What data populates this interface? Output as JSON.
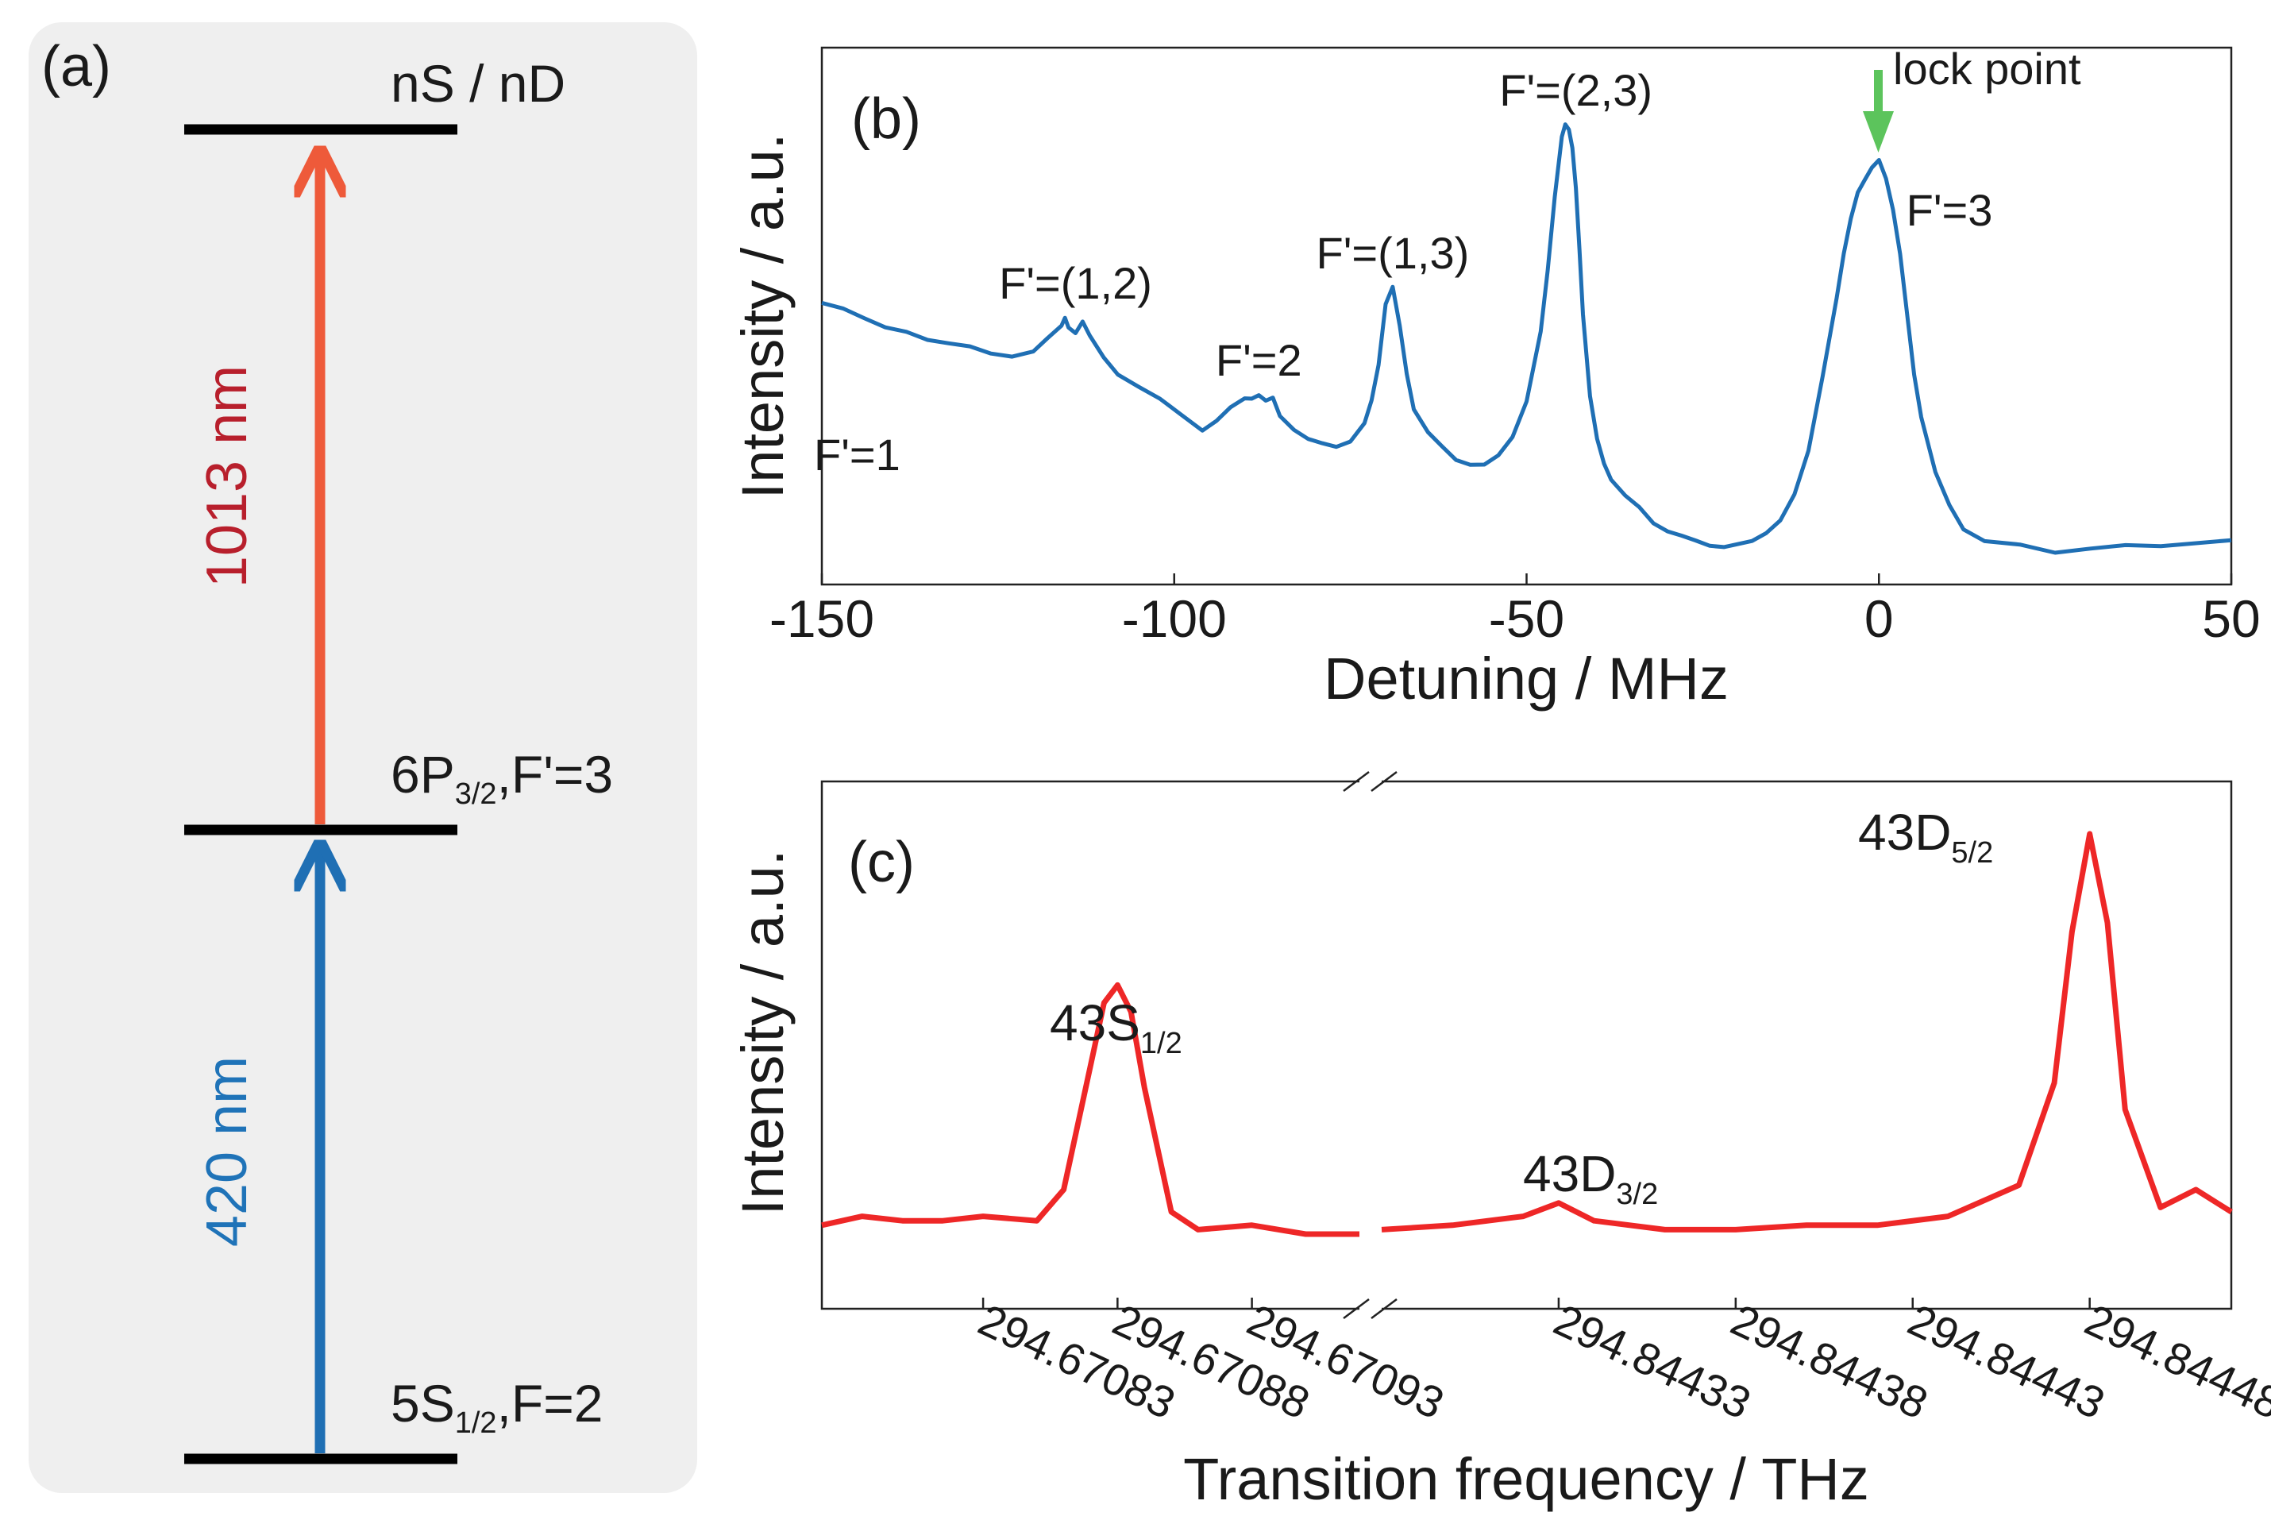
{
  "colors": {
    "panel_bg": "#efefef",
    "level_line": "#000000",
    "arrow_420": "#1f6fb4",
    "arrow_1013": "#ee5a3a",
    "label_420": "#1f73b8",
    "label_1013": "#b81f2c",
    "spectrum_b": "#1f6fb4",
    "spectrum_c": "#ee2727",
    "lock_arrow": "#5cc45c",
    "text": "#1a1a1a"
  },
  "panel_a": {
    "tag": "(a)",
    "levels": [
      {
        "id": "nsnd",
        "label": "nS / nD"
      },
      {
        "id": "6p",
        "label_main": "6P",
        "label_sub": "3/2",
        "label_tail": ",F'=3"
      },
      {
        "id": "5s",
        "label_main": "5S",
        "label_sub": "1/2",
        "label_tail": ",F=2"
      }
    ],
    "transitions": [
      {
        "wavelength": "420 nm",
        "from": "5s",
        "to": "6p"
      },
      {
        "wavelength": "1013 nm",
        "from": "6p",
        "to": "nsnd"
      }
    ]
  },
  "chart_data": [
    {
      "panel": "(b)",
      "type": "line",
      "title": "",
      "xlabel": "Detuning / MHz",
      "ylabel": "Intensity / a.u.",
      "xlim": [
        -150,
        50
      ],
      "ylim": [
        0,
        1
      ],
      "xticks": [
        -150,
        -100,
        -50,
        0,
        50
      ],
      "tick_labels": [
        "-150",
        "-100",
        "-50",
        "0",
        "50"
      ],
      "yticks_shown": false,
      "grid": false,
      "series": [
        {
          "name": "spectrum",
          "x": [
            -150,
            -147,
            -144,
            -141,
            -138,
            -135,
            -132,
            -129,
            -126,
            -123,
            -120,
            -118,
            -116,
            -115.5,
            -115,
            -114,
            -113,
            -112,
            -110,
            -108,
            -105,
            -102,
            -99,
            -96,
            -94,
            -92,
            -90,
            -89,
            -88,
            -87,
            -86,
            -85,
            -83,
            -81,
            -79,
            -77,
            -75,
            -73,
            -72,
            -71,
            -70,
            -69,
            -68,
            -67,
            -66,
            -64,
            -62,
            -60,
            -58,
            -56,
            -54,
            -52,
            -50,
            -48,
            -47,
            -46,
            -45,
            -44.5,
            -44,
            -43.5,
            -43,
            -42.5,
            -42,
            -41,
            -40,
            -39,
            -38,
            -36,
            -34,
            -32,
            -30,
            -28,
            -26,
            -24,
            -22,
            -20,
            -18,
            -16,
            -14,
            -12,
            -10,
            -8,
            -6,
            -5,
            -4,
            -3,
            -2,
            -1,
            0,
            1,
            2,
            3,
            4,
            5,
            6,
            8,
            10,
            12,
            15,
            20,
            25,
            30,
            35,
            40,
            45,
            50
          ],
          "y": [
            0.59,
            0.58,
            0.56,
            0.54,
            0.53,
            0.51,
            0.5,
            0.49,
            0.47,
            0.46,
            0.47,
            0.5,
            0.53,
            0.55,
            0.53,
            0.52,
            0.55,
            0.52,
            0.47,
            0.43,
            0.4,
            0.37,
            0.33,
            0.29,
            0.31,
            0.34,
            0.36,
            0.36,
            0.37,
            0.36,
            0.37,
            0.33,
            0.3,
            0.28,
            0.27,
            0.26,
            0.27,
            0.31,
            0.36,
            0.44,
            0.58,
            0.62,
            0.53,
            0.42,
            0.34,
            0.29,
            0.26,
            0.23,
            0.22,
            0.22,
            0.24,
            0.28,
            0.36,
            0.52,
            0.66,
            0.83,
            0.97,
            1.0,
            0.99,
            0.95,
            0.86,
            0.72,
            0.57,
            0.38,
            0.28,
            0.22,
            0.18,
            0.14,
            0.11,
            0.07,
            0.05,
            0.04,
            0.03,
            0.02,
            0.02,
            0.03,
            0.04,
            0.06,
            0.09,
            0.15,
            0.25,
            0.42,
            0.6,
            0.7,
            0.78,
            0.84,
            0.87,
            0.9,
            0.92,
            0.88,
            0.81,
            0.71,
            0.57,
            0.43,
            0.33,
            0.2,
            0.12,
            0.06,
            0.03,
            0.02,
            0.0,
            0.01,
            0.02,
            0.02,
            0.03,
            0.04
          ]
        }
      ],
      "annotations": [
        {
          "text": "F'=1",
          "x": -145,
          "y": 0.2
        },
        {
          "text": "F'=(1,2)",
          "x": -114,
          "y": 0.6
        },
        {
          "text": "F'=2",
          "x": -88,
          "y": 0.42
        },
        {
          "text": "F'=(1,3)",
          "x": -69,
          "y": 0.67
        },
        {
          "text": "F'=(2,3)",
          "x": -43,
          "y": 1.05
        },
        {
          "text": "F'=3",
          "x": 10,
          "y": 0.77
        },
        {
          "text": "lock point",
          "x": 2,
          "y": 1.1,
          "arrow_at_x": 0
        }
      ]
    },
    {
      "panel": "(c)",
      "type": "line",
      "title": "",
      "xlabel": "Transition frequency / THz",
      "ylabel": "Intensity / a.u.",
      "broken_axis": true,
      "segments": [
        {
          "xlim": [
            294.67077,
            294.67097
          ],
          "xticks": [
            294.67083,
            294.67088,
            294.67093
          ],
          "tick_labels": [
            "294.67083",
            "294.67088",
            "294.67093"
          ],
          "x": [
            294.67077,
            294.670785,
            294.6708,
            294.670815,
            294.67083,
            294.67085,
            294.67086,
            294.67087,
            294.670875,
            294.67088,
            294.670885,
            294.67089,
            294.6709,
            294.67091,
            294.67093,
            294.67095,
            294.67097
          ],
          "y": [
            0.12,
            0.14,
            0.13,
            0.13,
            0.14,
            0.13,
            0.2,
            0.48,
            0.62,
            0.66,
            0.6,
            0.43,
            0.15,
            0.11,
            0.12,
            0.1,
            0.1
          ]
        },
        {
          "xlim": [
            294.84428,
            294.84452
          ],
          "xticks": [
            294.84433,
            294.84438,
            294.84443,
            294.84448
          ],
          "tick_labels": [
            "294.84433",
            "294.84438",
            "294.84443",
            "294.84448"
          ],
          "x": [
            294.84428,
            294.8443,
            294.84432,
            294.84433,
            294.84434,
            294.84436,
            294.84438,
            294.8444,
            294.84442,
            294.84444,
            294.84446,
            294.84447,
            294.844475,
            294.84448,
            294.844485,
            294.84449,
            294.8445,
            294.84451,
            294.84452
          ],
          "y": [
            0.11,
            0.12,
            0.14,
            0.17,
            0.13,
            0.11,
            0.11,
            0.12,
            0.12,
            0.14,
            0.21,
            0.44,
            0.78,
            1.0,
            0.8,
            0.38,
            0.16,
            0.2,
            0.15
          ]
        }
      ],
      "ylim": [
        0,
        1.05
      ],
      "yticks_shown": false,
      "grid": false,
      "annotations": [
        {
          "main": "43S",
          "sub": "1/2"
        },
        {
          "main": "43D",
          "sub": "3/2"
        },
        {
          "main": "43D",
          "sub": "5/2"
        }
      ]
    }
  ]
}
